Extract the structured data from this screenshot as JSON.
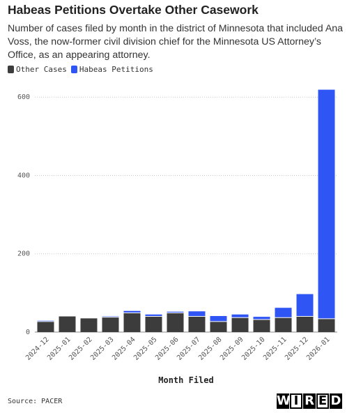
{
  "header": {
    "title": "Habeas Petitions Overtake Other Casework",
    "subtitle": "Number of cases filed by month in the district of Minnesota that included Ana Voss, the now-former civil division chief for the Minnesota US Attorney’s Office, as an appearing attorney."
  },
  "colors": {
    "other": "#3c3c3c",
    "habeas": "#2f55f5",
    "grid": "#cccccc",
    "axis": "#888888"
  },
  "footer": {
    "source": "Source: PACER",
    "logo_letters": [
      "W",
      "I",
      "R",
      "E",
      "D"
    ]
  },
  "chart_data": {
    "type": "bar",
    "stacked": true,
    "title": "Habeas Petitions Overtake Other Casework",
    "xlabel": "Month Filed",
    "ylabel": "",
    "ylim": [
      0,
      620
    ],
    "yticks": [
      0,
      200,
      400,
      600
    ],
    "grid": true,
    "legend_position": "top-left",
    "categories": [
      "2024-12",
      "2025-01",
      "2025-02",
      "2025-03",
      "2025-04",
      "2025-05",
      "2025-06",
      "2025-07",
      "2025-08",
      "2025-09",
      "2025-10",
      "2025-11",
      "2025-12",
      "2026-01"
    ],
    "series": [
      {
        "name": "Other Cases",
        "color": "#3c3c3c",
        "values": [
          27,
          40,
          35,
          38,
          49,
          40,
          49,
          40,
          27,
          37,
          32,
          37,
          40,
          34
        ]
      },
      {
        "name": "Habeas Petitions",
        "color": "#2f55f5",
        "values": [
          2,
          0,
          0,
          2,
          5,
          5,
          3,
          13,
          14,
          8,
          7,
          25,
          57,
          585
        ]
      }
    ]
  }
}
